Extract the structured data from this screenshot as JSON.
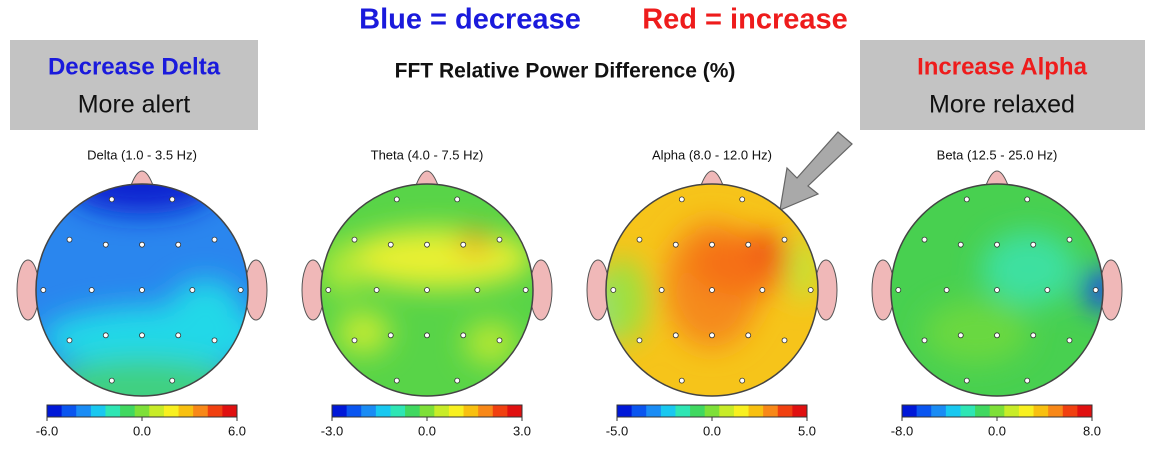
{
  "legend": {
    "blue": "Blue = decrease",
    "red": "Red = increase"
  },
  "subtitle": "FFT Relative Power Difference  (%)",
  "left_box": {
    "title": "Decrease Delta",
    "text": "More alert"
  },
  "right_box": {
    "title": "Increase  Alpha",
    "text": "More relaxed"
  },
  "maps": [
    {
      "label": "Delta (1.0 - 3.5 Hz)",
      "ticks": [
        {
          "value": -6,
          "label": "-6.0"
        },
        {
          "value": 0,
          "label": "0.0"
        },
        {
          "value": 6,
          "label": "6.0"
        }
      ]
    },
    {
      "label": "Theta (4.0 - 7.5 Hz)",
      "ticks": [
        {
          "value": -3,
          "label": "-3.0"
        },
        {
          "value": 0,
          "label": "0.0"
        },
        {
          "value": 3,
          "label": "3.0"
        }
      ]
    },
    {
      "label": "Alpha (8.0 - 12.0 Hz)",
      "ticks": [
        {
          "value": -5,
          "label": "-5.0"
        },
        {
          "value": 0,
          "label": "0.0"
        },
        {
          "value": 5,
          "label": "5.0"
        }
      ]
    },
    {
      "label": "Beta (12.5 - 25.0 Hz)",
      "ticks": [
        {
          "value": -8,
          "label": "-8.0"
        },
        {
          "value": 0,
          "label": "0.0"
        },
        {
          "value": 8,
          "label": "8.0"
        }
      ]
    }
  ]
}
